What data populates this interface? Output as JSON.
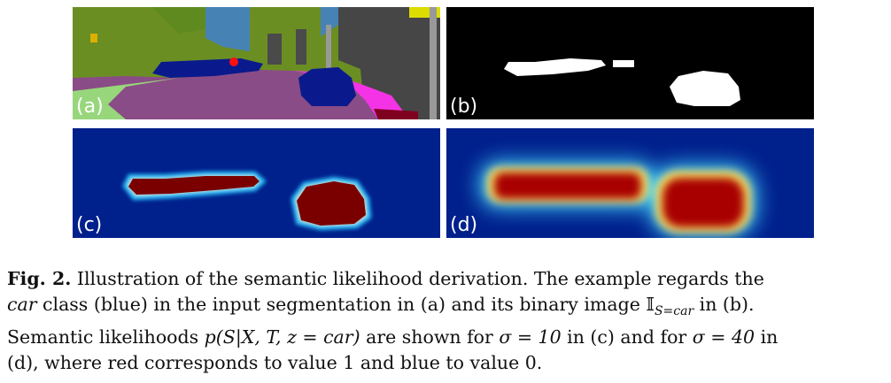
{
  "panels": {
    "a": {
      "label": "(a)"
    },
    "b": {
      "label": "(b)"
    },
    "c": {
      "label": "(c)"
    },
    "d": {
      "label": "(d)"
    }
  },
  "colors": {
    "seg_car": "#0a1a8c",
    "seg_road": "#8a4c86",
    "seg_sidewalk": "#f533e6",
    "seg_vegetation": "#6b8e23",
    "seg_sky": "#4682b4",
    "seg_building": "#4a4a4a",
    "heat_low": "#00208c",
    "heat_high": "#7a0000"
  },
  "caption": {
    "fig_label": "Fig. 2.",
    "line1_text": " Illustration of the semantic likelihood derivation. The example regards the",
    "line2_italic": "car",
    "line2_text": " class (blue) in the input segmentation in (a) and its binary image ",
    "line2_math": "𝕀",
    "line2_sub": "S=car",
    "line2_end": " in (b).",
    "line3_text": "Semantic likelihoods ",
    "line3_math": "p(S|X, T, z = car)",
    "line3_mid": " are shown for ",
    "line3_sigma1": "σ = 10",
    "line3_mid2": " in (c) and for ",
    "line3_sigma2": "σ = 40",
    "line3_end": " in",
    "line4_text": "(d), where red corresponds to value 1 and blue to value 0."
  }
}
